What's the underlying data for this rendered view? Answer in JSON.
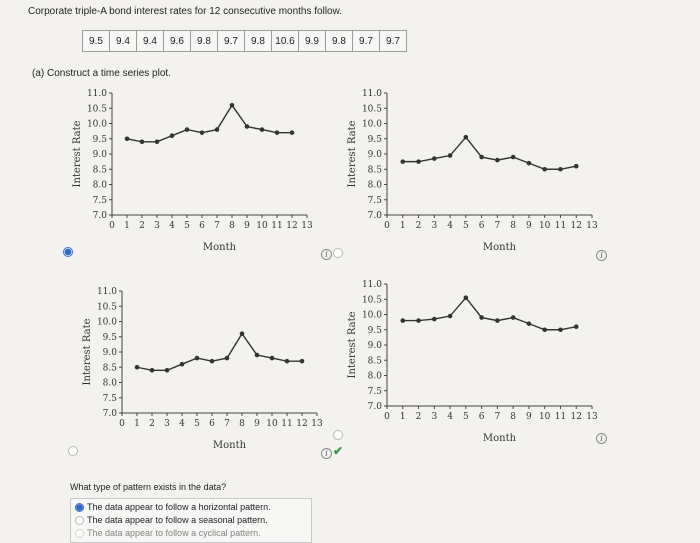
{
  "prompt": "Corporate triple-A bond interest rates for 12 consecutive months follow.",
  "rates": [
    "9.5",
    "9.4",
    "9.4",
    "9.6",
    "9.8",
    "9.7",
    "9.8",
    "10.6",
    "9.9",
    "9.8",
    "9.7",
    "9.7"
  ],
  "part_a": "(a)  Construct a time series plot.",
  "axis": {
    "ylabel": "Interest Rate",
    "xlabel": "Month",
    "y_ticks": [
      "7.0",
      "7.5",
      "8.0",
      "8.5",
      "9.0",
      "9.5",
      "10.0",
      "10.5",
      "11.0"
    ],
    "x_ticks": [
      "0",
      "1",
      "2",
      "3",
      "4",
      "5",
      "6",
      "7",
      "8",
      "9",
      "10",
      "11",
      "12",
      "13"
    ]
  },
  "chart_data": [
    {
      "type": "line",
      "label": "option-top-left",
      "x": [
        1,
        2,
        3,
        4,
        5,
        6,
        7,
        8,
        9,
        10,
        11,
        12
      ],
      "y": [
        9.5,
        9.4,
        9.4,
        9.6,
        9.8,
        9.7,
        9.8,
        10.6,
        9.9,
        9.8,
        9.7,
        9.7
      ],
      "ylim": [
        7.0,
        11.0
      ],
      "xlim": [
        0,
        13
      ]
    },
    {
      "type": "line",
      "label": "option-top-right",
      "x": [
        1,
        2,
        3,
        4,
        5,
        6,
        7,
        8,
        9,
        10,
        11,
        12
      ],
      "y": [
        8.75,
        8.75,
        8.85,
        8.95,
        9.55,
        8.9,
        8.8,
        8.9,
        8.7,
        8.5,
        8.5,
        8.6
      ],
      "ylim": [
        7.0,
        11.0
      ],
      "xlim": [
        0,
        13
      ]
    },
    {
      "type": "line",
      "label": "option-bottom-left",
      "x": [
        1,
        2,
        3,
        4,
        5,
        6,
        7,
        8,
        9,
        10,
        11,
        12
      ],
      "y": [
        8.5,
        8.4,
        8.4,
        8.6,
        8.8,
        8.7,
        8.8,
        9.6,
        8.9,
        8.8,
        8.7,
        8.7
      ],
      "ylim": [
        7.0,
        11.0
      ],
      "xlim": [
        0,
        13
      ]
    },
    {
      "type": "line",
      "label": "option-bottom-right",
      "x": [
        1,
        2,
        3,
        4,
        5,
        6,
        7,
        8,
        9,
        10,
        11,
        12
      ],
      "y": [
        9.8,
        9.8,
        9.85,
        9.95,
        10.55,
        9.9,
        9.8,
        9.9,
        9.7,
        9.5,
        9.5,
        9.6
      ],
      "ylim": [
        7.0,
        11.0
      ],
      "xlim": [
        0,
        13
      ]
    }
  ],
  "question": "What type of pattern exists in the data?",
  "options": [
    {
      "label": "The data appear to follow a horizontal pattern.",
      "selected": true
    },
    {
      "label": "The data appear to follow a seasonal pattern.",
      "selected": false
    },
    {
      "label": "The data appear to follow a cyclical pattern.",
      "selected": false
    }
  ],
  "colors": {
    "accent": "#2f6bc7",
    "correct": "#2e9a45",
    "line": "#333333"
  }
}
